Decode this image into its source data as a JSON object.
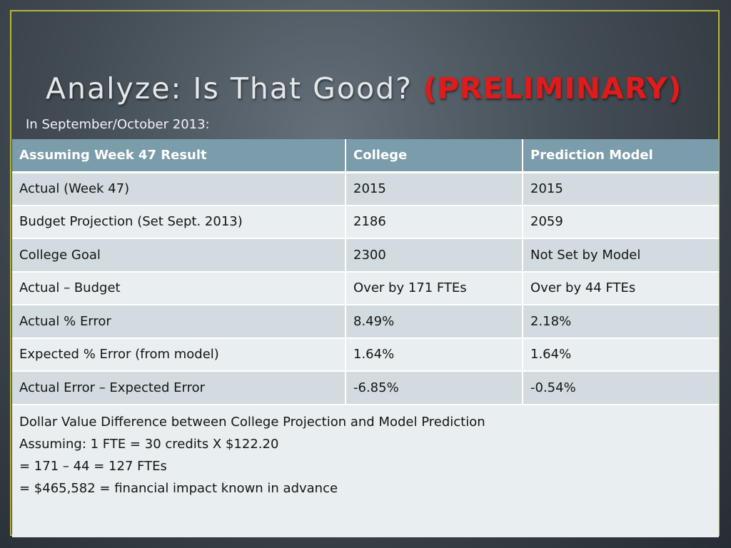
{
  "slide": {
    "title_main": "Analyze: Is That Good? ",
    "title_highlight": "(PRELIMINARY)",
    "subtitle": "In September/October 2013:"
  },
  "table": {
    "headers": [
      "Assuming Week 47 Result",
      "College",
      "Prediction Model"
    ],
    "rows": [
      [
        "Actual (Week 47)",
        "2015",
        "2015"
      ],
      [
        "Budget Projection (Set Sept. 2013)",
        "2186",
        "2059"
      ],
      [
        "College Goal",
        "2300",
        "Not Set by Model"
      ],
      [
        "Actual – Budget",
        "Over by 171 FTEs",
        "Over by 44 FTEs"
      ],
      [
        "Actual % Error",
        "8.49%",
        "2.18%"
      ],
      [
        "Expected % Error (from model)",
        "1.64%",
        "1.64%"
      ],
      [
        "Actual Error – Expected Error",
        "-6.85%",
        "-0.54%"
      ]
    ],
    "note_lines": [
      "Dollar Value Difference between College Projection and Model Prediction",
      "Assuming: 1 FTE = 30 credits X $122.20",
      "= 171 – 44 = 127 FTEs",
      "= $465,582 = financial impact known in advance"
    ]
  },
  "colors": {
    "header_bg": "#7b9cab",
    "row_odd": "#d2dce0",
    "row_even": "#e9eef0",
    "highlight": "#e01b1b",
    "frame_border": "#b7b63a"
  }
}
